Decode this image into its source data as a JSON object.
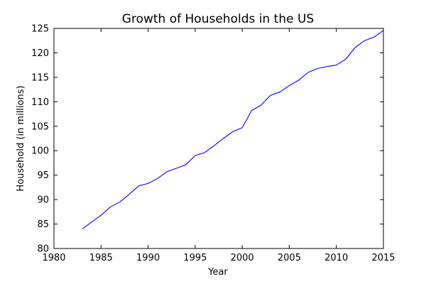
{
  "chart_data": {
    "type": "line",
    "title": "Growth of Households in the US",
    "xlabel": "Year",
    "ylabel": "Household (in millions)",
    "xlim": [
      1980,
      2015
    ],
    "ylim": [
      80,
      125
    ],
    "xticks": [
      1980,
      1985,
      1990,
      1995,
      2000,
      2005,
      2010,
      2015
    ],
    "yticks": [
      80,
      85,
      90,
      95,
      100,
      105,
      110,
      115,
      120,
      125
    ],
    "grid": false,
    "line_color": "#0000ff",
    "series": [
      {
        "x": [
          1983,
          1984,
          1985,
          1986,
          1987,
          1988,
          1989,
          1990,
          1991,
          1992,
          1993,
          1994,
          1995,
          1996,
          1997,
          1998,
          1999,
          2000,
          2001,
          2002,
          2003,
          2004,
          2005,
          2006,
          2007,
          2008,
          2009,
          2010,
          2011,
          2012,
          2013,
          2014,
          2015
        ],
        "values": [
          84.0,
          85.4,
          86.8,
          88.5,
          89.5,
          91.1,
          92.8,
          93.3,
          94.3,
          95.7,
          96.4,
          97.1,
          99.0,
          99.6,
          101.0,
          102.5,
          103.9,
          104.7,
          108.2,
          109.3,
          111.3,
          112.0,
          113.3,
          114.4,
          116.0,
          116.8,
          117.2,
          117.5,
          118.7,
          121.1,
          122.5,
          123.2,
          124.6
        ]
      }
    ]
  }
}
